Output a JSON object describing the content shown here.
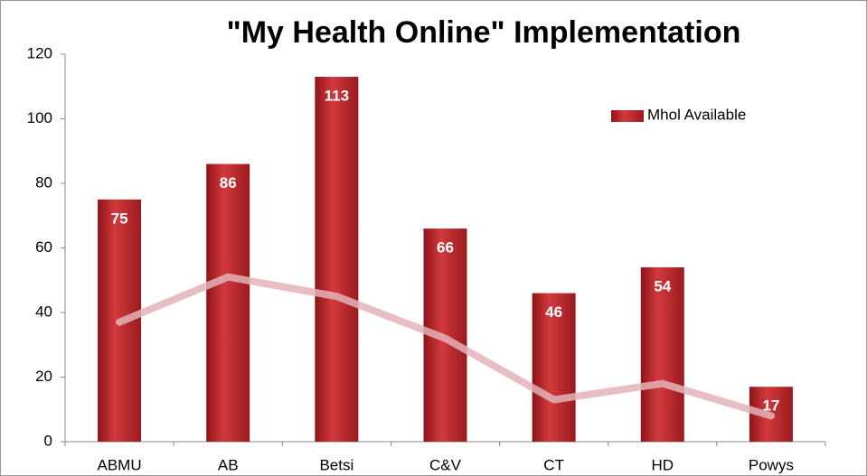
{
  "chart_data": {
    "type": "bar",
    "title": "\"My Health Online\" Implementation",
    "categories": [
      "ABMU",
      "AB",
      "Betsi",
      "C&V",
      "CT",
      "HD",
      "Powys"
    ],
    "series": [
      {
        "name": "Mhol Available",
        "color": "#c0272d",
        "values": [
          75,
          86,
          113,
          66,
          46,
          54,
          17
        ]
      },
      {
        "type": "line",
        "color": "#e3b3b8",
        "values": [
          37,
          51,
          45,
          32,
          13,
          18,
          8
        ]
      }
    ],
    "ylim": [
      0,
      120
    ],
    "yticks": [
      0,
      20,
      40,
      60,
      80,
      100,
      120
    ],
    "grid": false,
    "legend": "top-right"
  }
}
